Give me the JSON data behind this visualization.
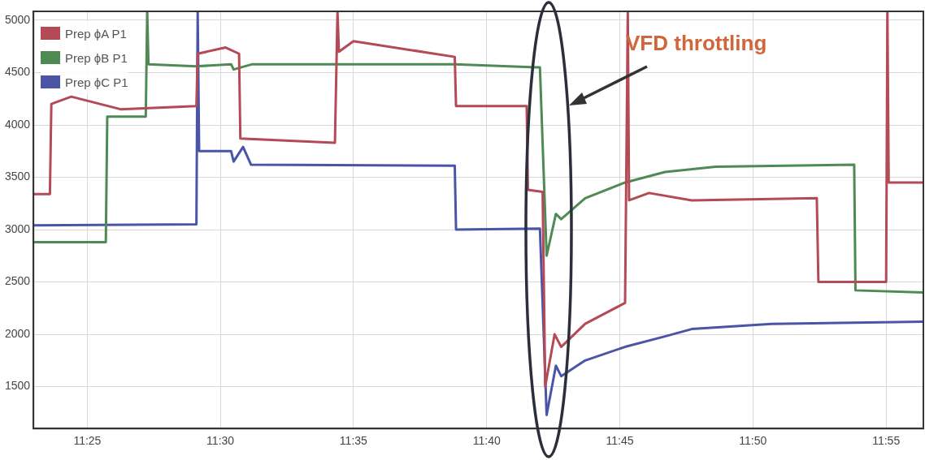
{
  "chart_data": {
    "type": "line",
    "xlim": [
      11.383,
      11.94
    ],
    "ylim": [
      1100,
      5085
    ],
    "xticks": [
      {
        "value": 11.4167,
        "label": "11:25"
      },
      {
        "value": 11.5,
        "label": "11:30"
      },
      {
        "value": 11.5833,
        "label": "11:35"
      },
      {
        "value": 11.6667,
        "label": "11:40"
      },
      {
        "value": 11.75,
        "label": "11:45"
      },
      {
        "value": 11.8333,
        "label": "11:50"
      },
      {
        "value": 11.9167,
        "label": "11:55"
      }
    ],
    "yticks": [
      1500,
      2000,
      2500,
      3000,
      3500,
      4000,
      4500,
      5000
    ],
    "grid": true,
    "legend": "top left",
    "marker": "none",
    "line_style": "solid",
    "annotations": [
      "VFD throttling"
    ],
    "series": [
      {
        "name": "Prep ϕA P1",
        "color": "#b34a55",
        "x": [
          11.3833,
          11.3933,
          11.3942,
          11.4067,
          11.4375,
          11.485,
          11.4858,
          11.5033,
          11.5117,
          11.5125,
          11.5717,
          11.5733,
          11.5742,
          11.5833,
          11.6467,
          11.6475,
          11.6917,
          11.6925,
          11.7017,
          11.7033,
          11.7092,
          11.7133,
          11.7283,
          11.7533,
          11.755,
          11.7558,
          11.7683,
          11.795,
          11.8733,
          11.8743,
          11.9167,
          11.9175,
          11.9183,
          11.94
        ],
        "values": [
          3340,
          3340,
          4200,
          4270,
          4150,
          4180,
          4680,
          4740,
          4680,
          3870,
          3830,
          5080,
          4700,
          4800,
          4650,
          4180,
          4180,
          3380,
          3360,
          1500,
          2000,
          1880,
          2100,
          2300,
          5080,
          3280,
          3350,
          3280,
          3300,
          2500,
          2500,
          5080,
          3450,
          3450
        ]
      },
      {
        "name": "Prep ϕB P1",
        "color": "#4f8a55",
        "x": [
          11.3833,
          11.4283,
          11.4292,
          11.4533,
          11.4542,
          11.455,
          11.485,
          11.5067,
          11.5083,
          11.52,
          11.6467,
          11.6975,
          11.7,
          11.7042,
          11.71,
          11.7133,
          11.7283,
          11.7533,
          11.7783,
          11.81,
          11.8967,
          11.8975,
          11.94
        ],
        "values": [
          2880,
          2880,
          4080,
          4080,
          5080,
          4580,
          4560,
          4580,
          4530,
          4580,
          4580,
          4550,
          4550,
          2750,
          3150,
          3100,
          3300,
          3450,
          3550,
          3600,
          3620,
          2420,
          2400
        ]
      },
      {
        "name": "Prep ϕC P1",
        "color": "#4a55a8",
        "x": [
          11.3833,
          11.485,
          11.4858,
          11.4867,
          11.5067,
          11.5083,
          11.5142,
          11.5192,
          11.6467,
          11.6475,
          11.7,
          11.7042,
          11.71,
          11.7133,
          11.7283,
          11.7533,
          11.7783,
          11.795,
          11.845,
          11.94
        ],
        "values": [
          3040,
          3050,
          5080,
          3750,
          3750,
          3650,
          3790,
          3620,
          3610,
          3000,
          3010,
          1230,
          1700,
          1600,
          1750,
          1880,
          1980,
          2050,
          2100,
          2120
        ]
      }
    ]
  }
}
